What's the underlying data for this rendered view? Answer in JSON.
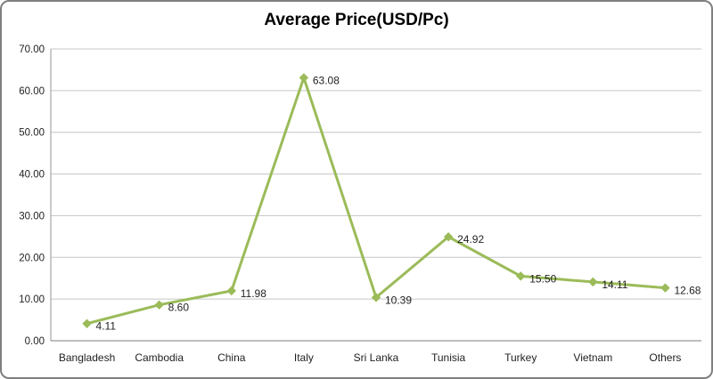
{
  "window": {
    "background": "#ffffff",
    "border_color": "#7f7f7f"
  },
  "chart_data": {
    "type": "line",
    "title": "Average Price(USD/Pc)",
    "categories": [
      "Bangladesh",
      "Cambodia",
      "China",
      "Italy",
      "Sri Lanka",
      "Tunisia",
      "Turkey",
      "Vietnam",
      "Others"
    ],
    "values": [
      4.11,
      8.6,
      11.98,
      63.08,
      10.39,
      24.92,
      15.5,
      14.11,
      12.68
    ],
    "data_labels": [
      "4.11",
      "8.60",
      "11.98",
      "63.08",
      "10.39",
      "24.92",
      "15.50",
      "14.11",
      "12.68"
    ],
    "xlabel": "",
    "ylabel": "",
    "ylim": [
      0,
      70
    ],
    "ytick_step": 10,
    "ytick_labels": [
      "0.00",
      "10.00",
      "20.00",
      "30.00",
      "40.00",
      "50.00",
      "60.00",
      "70.00"
    ],
    "grid": "horizontal",
    "legend": "none",
    "label_position": "right",
    "marker": "diamond",
    "line_color": "#9BBB59",
    "marker_color": "#9BBB59",
    "gridline_color": "#C6C6C6",
    "axis_color": "#969696",
    "text_color": "#1f1f1f",
    "title_color": "#000000"
  }
}
